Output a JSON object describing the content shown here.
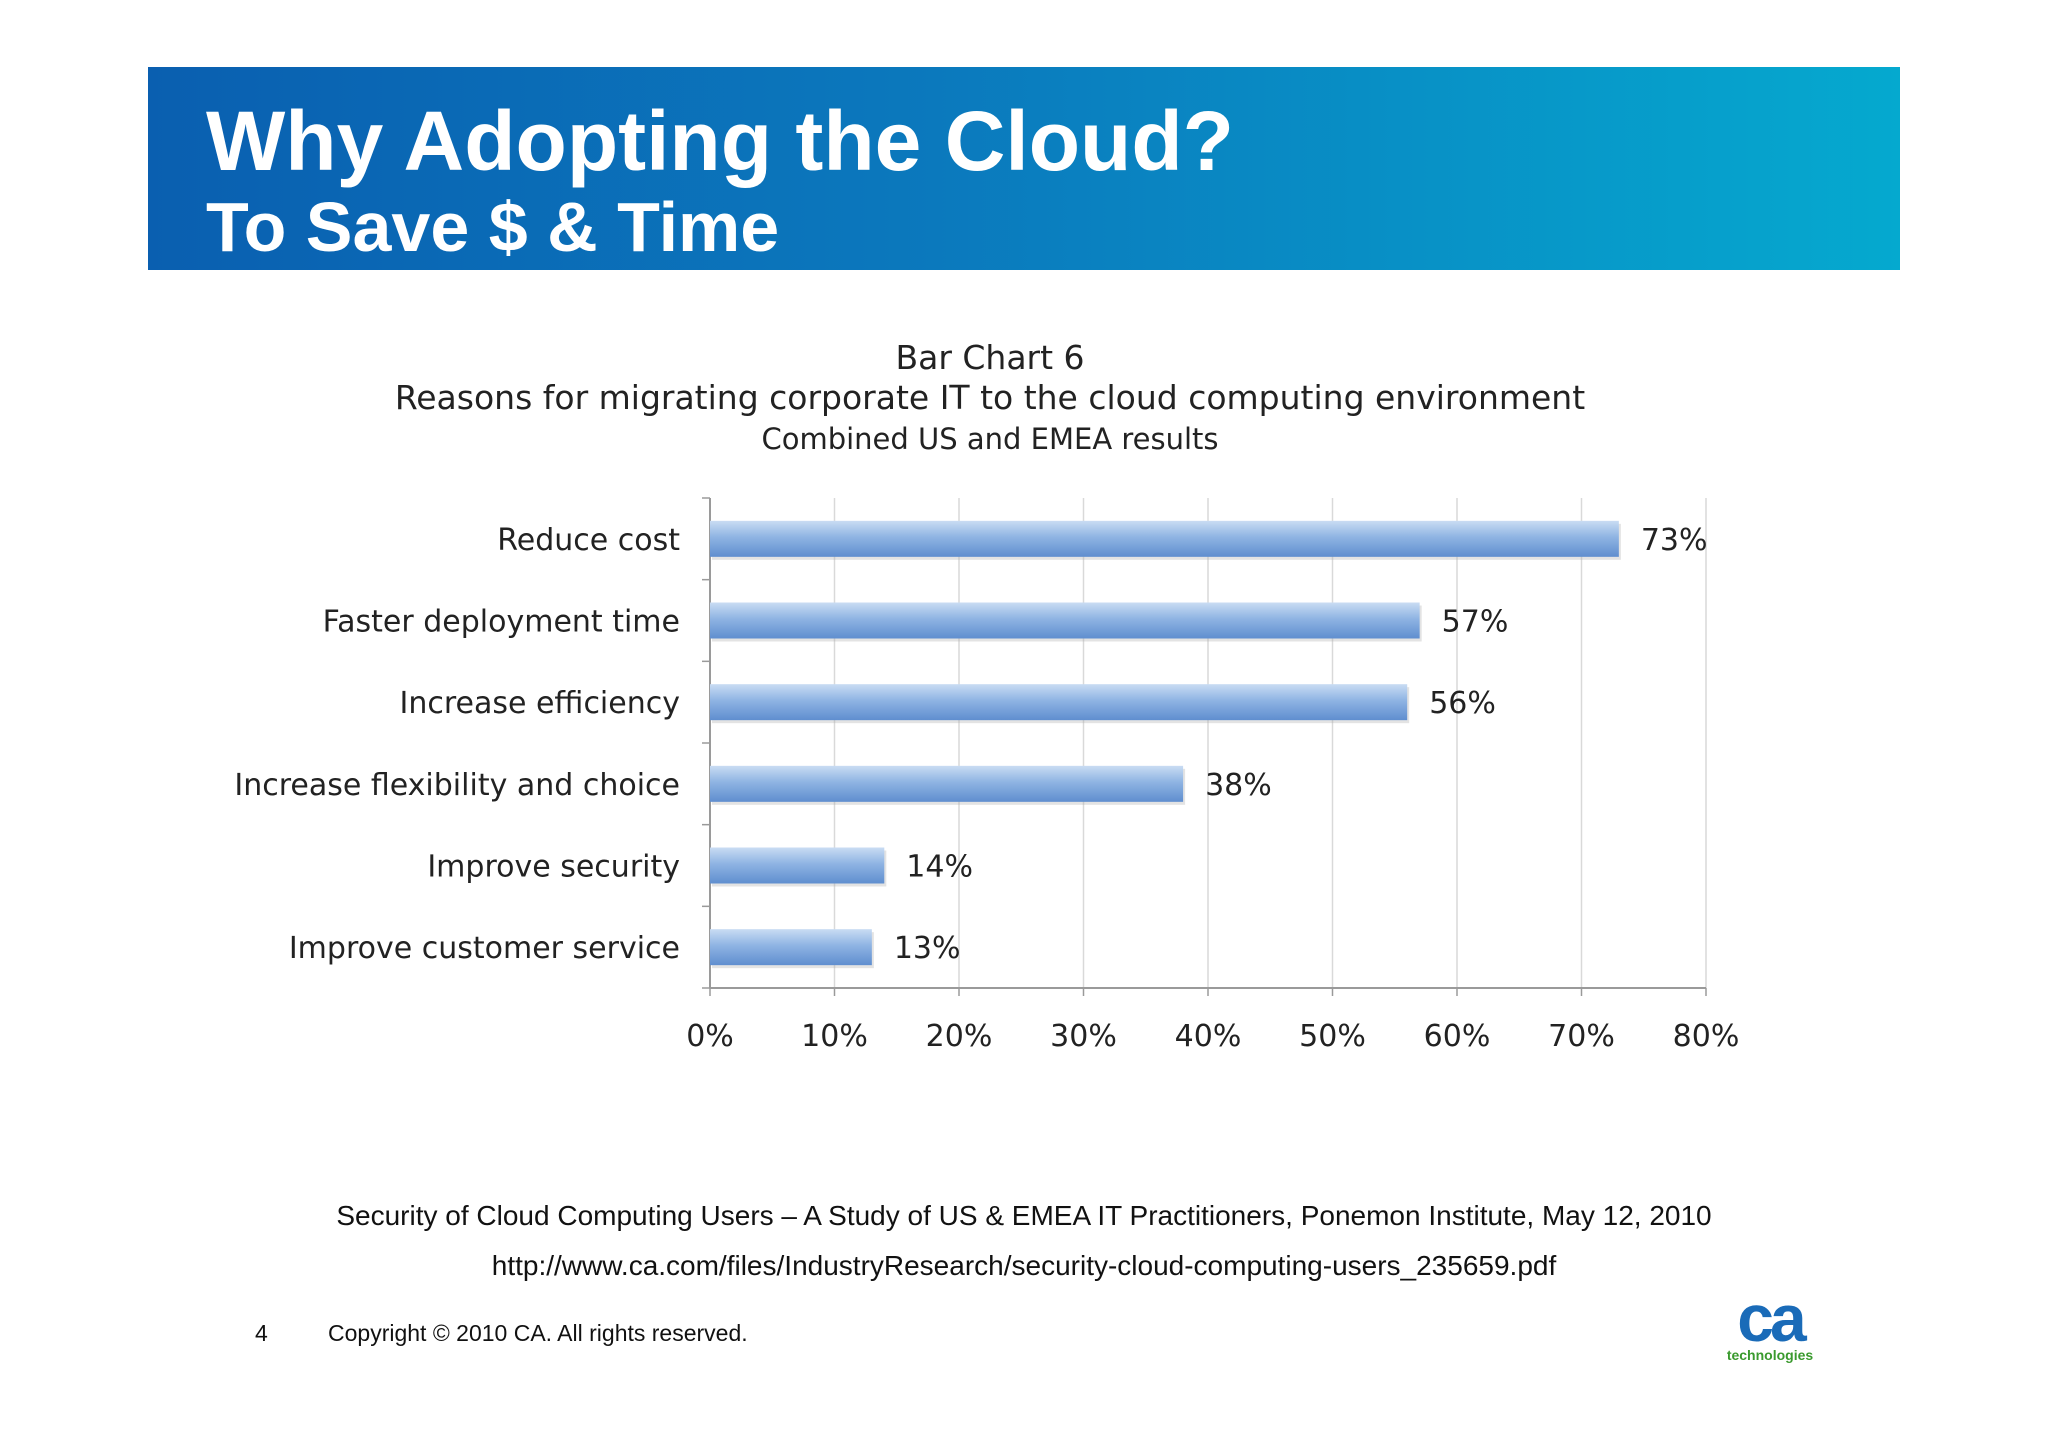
{
  "slide": {
    "title": "Why Adopting the Cloud?",
    "subtitle": "To Save $ & Time",
    "source_line1": "Security of Cloud Computing Users – A Study of US & EMEA IT Practitioners, Ponemon Institute, May 12, 2010",
    "source_line2": "http://www.ca.com/files/IndustryResearch/security-cloud-computing-users_235659.pdf",
    "page_number": "4",
    "copyright": "Copyright © 2010 CA. All rights reserved.",
    "logo_mark": "ca",
    "logo_text": "technologies",
    "colors": {
      "banner_start": "#0a5fb0",
      "banner_end": "#05a9cf",
      "bar": "#8fb4e3",
      "logo_blue": "#1a6bb8",
      "logo_green": "#3a9a2e"
    }
  },
  "chart_data": {
    "type": "bar",
    "orientation": "horizontal",
    "title": "Bar Chart 6",
    "subtitle": "Reasons for migrating corporate IT to the cloud computing environment",
    "subtitle2": "Combined US and EMEA results",
    "categories": [
      "Reduce cost",
      "Faster deployment time",
      "Increase efficiency",
      "Increase flexibility and choice",
      "Improve security",
      "Improve customer service"
    ],
    "values": [
      73,
      57,
      56,
      38,
      14,
      13
    ],
    "value_labels": [
      "73%",
      "57%",
      "56%",
      "38%",
      "14%",
      "13%"
    ],
    "x_ticks": [
      "0%",
      "10%",
      "20%",
      "30%",
      "40%",
      "50%",
      "60%",
      "70%",
      "80%"
    ],
    "xlim": [
      0,
      80
    ],
    "grid": true
  }
}
